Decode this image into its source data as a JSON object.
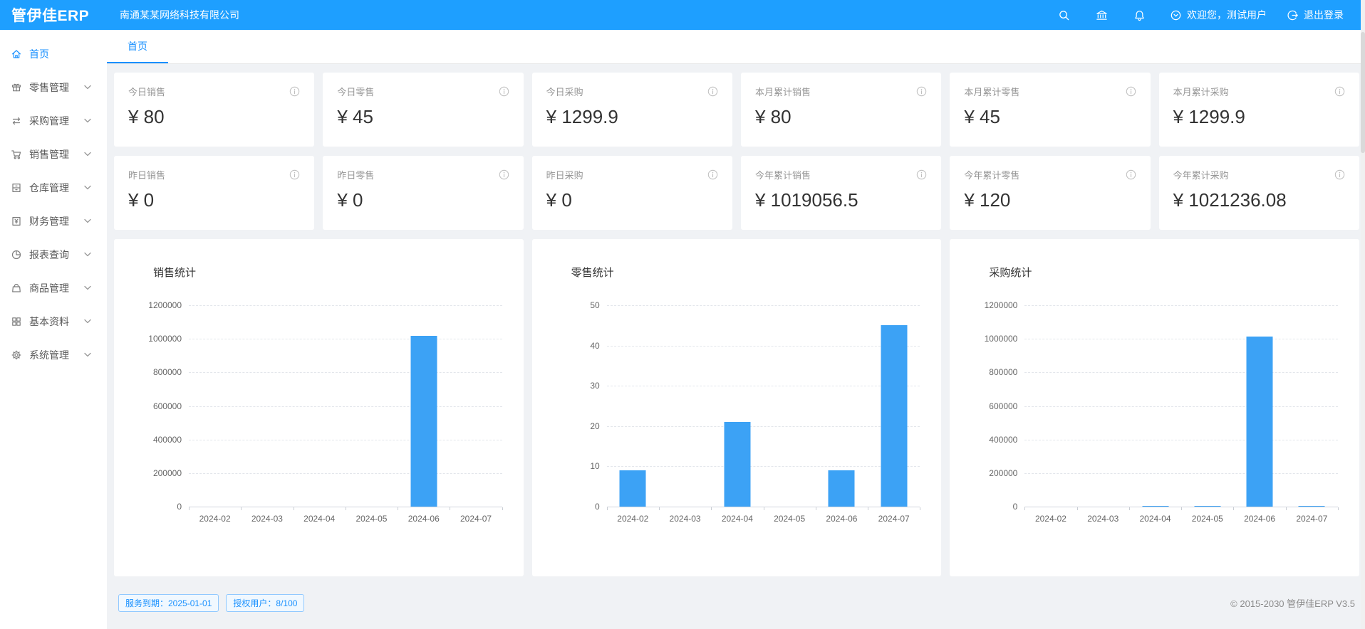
{
  "colors": {
    "primary": "#1E9FFF",
    "accent": "#1890FF",
    "bar": "#3CA2F5"
  },
  "header": {
    "logo": "管伊佳ERP",
    "company": "南通某某网络科技有限公司",
    "welcome": "欢迎您，测试用户",
    "logout": "退出登录"
  },
  "sidebar": {
    "items": [
      {
        "key": "home",
        "label": "首页",
        "icon": "home-icon",
        "active": true,
        "has_children": false
      },
      {
        "key": "retail",
        "label": "零售管理",
        "icon": "gift-icon",
        "active": false,
        "has_children": true
      },
      {
        "key": "purchase",
        "label": "采购管理",
        "icon": "swap-icon",
        "active": false,
        "has_children": true
      },
      {
        "key": "sales",
        "label": "销售管理",
        "icon": "cart-icon",
        "active": false,
        "has_children": true
      },
      {
        "key": "warehouse",
        "label": "仓库管理",
        "icon": "ledger-icon",
        "active": false,
        "has_children": true
      },
      {
        "key": "finance",
        "label": "财务管理",
        "icon": "finance-icon",
        "active": false,
        "has_children": true
      },
      {
        "key": "reports",
        "label": "报表查询",
        "icon": "piechart-icon",
        "active": false,
        "has_children": true
      },
      {
        "key": "goods",
        "label": "商品管理",
        "icon": "bag-icon",
        "active": false,
        "has_children": true
      },
      {
        "key": "basic",
        "label": "基本资料",
        "icon": "appstore-icon",
        "active": false,
        "has_children": true
      },
      {
        "key": "system",
        "label": "系统管理",
        "icon": "gear-icon",
        "active": false,
        "has_children": true
      }
    ]
  },
  "tabs": [
    {
      "label": "首页",
      "active": true
    }
  ],
  "stat_cards": [
    {
      "key": "today-sales",
      "label": "今日销售",
      "value": "¥ 80"
    },
    {
      "key": "today-retail",
      "label": "今日零售",
      "value": "¥ 45"
    },
    {
      "key": "today-purchase",
      "label": "今日采购",
      "value": "¥ 1299.9"
    },
    {
      "key": "month-sales",
      "label": "本月累计销售",
      "value": "¥ 80"
    },
    {
      "key": "month-retail",
      "label": "本月累计零售",
      "value": "¥ 45"
    },
    {
      "key": "month-purchase",
      "label": "本月累计采购",
      "value": "¥ 1299.9"
    },
    {
      "key": "yesterday-sales",
      "label": "昨日销售",
      "value": "¥ 0"
    },
    {
      "key": "yesterday-retail",
      "label": "昨日零售",
      "value": "¥ 0"
    },
    {
      "key": "yesterday-purchase",
      "label": "昨日采购",
      "value": "¥ 0"
    },
    {
      "key": "year-sales",
      "label": "今年累计销售",
      "value": "¥ 1019056.5"
    },
    {
      "key": "year-retail",
      "label": "今年累计零售",
      "value": "¥ 120"
    },
    {
      "key": "year-purchase",
      "label": "今年累计采购",
      "value": "¥ 1021236.08"
    }
  ],
  "chart_data": [
    {
      "key": "sales",
      "type": "bar",
      "title": "销售统计",
      "categories": [
        "2024-02",
        "2024-03",
        "2024-04",
        "2024-05",
        "2024-06",
        "2024-07"
      ],
      "values": [
        0,
        0,
        0,
        0,
        1019000,
        80
      ],
      "ylim": [
        0,
        1200000
      ],
      "yticks": [
        0,
        200000,
        400000,
        600000,
        800000,
        1000000,
        1200000
      ],
      "grid": "dashed",
      "legend": "none"
    },
    {
      "key": "retail",
      "type": "bar",
      "title": "零售统计",
      "categories": [
        "2024-02",
        "2024-03",
        "2024-04",
        "2024-05",
        "2024-06",
        "2024-07"
      ],
      "values": [
        9,
        0,
        21,
        0,
        9,
        45
      ],
      "ylim": [
        0,
        50
      ],
      "yticks": [
        0,
        10,
        20,
        30,
        40,
        50
      ],
      "grid": "dashed",
      "legend": "none"
    },
    {
      "key": "purchase",
      "type": "bar",
      "title": "采购统计",
      "categories": [
        "2024-02",
        "2024-03",
        "2024-04",
        "2024-05",
        "2024-06",
        "2024-07"
      ],
      "values": [
        0,
        0,
        6000,
        2500,
        1011400,
        1300
      ],
      "ylim": [
        0,
        1200000
      ],
      "yticks": [
        0,
        200000,
        400000,
        600000,
        800000,
        1000000,
        1200000
      ],
      "grid": "dashed",
      "legend": "none"
    }
  ],
  "footer": {
    "service_badge": "服务到期：2025-01-01",
    "license_badge": "授权用户：8/100",
    "copyright": "© 2015-2030 管伊佳ERP V3.5"
  }
}
